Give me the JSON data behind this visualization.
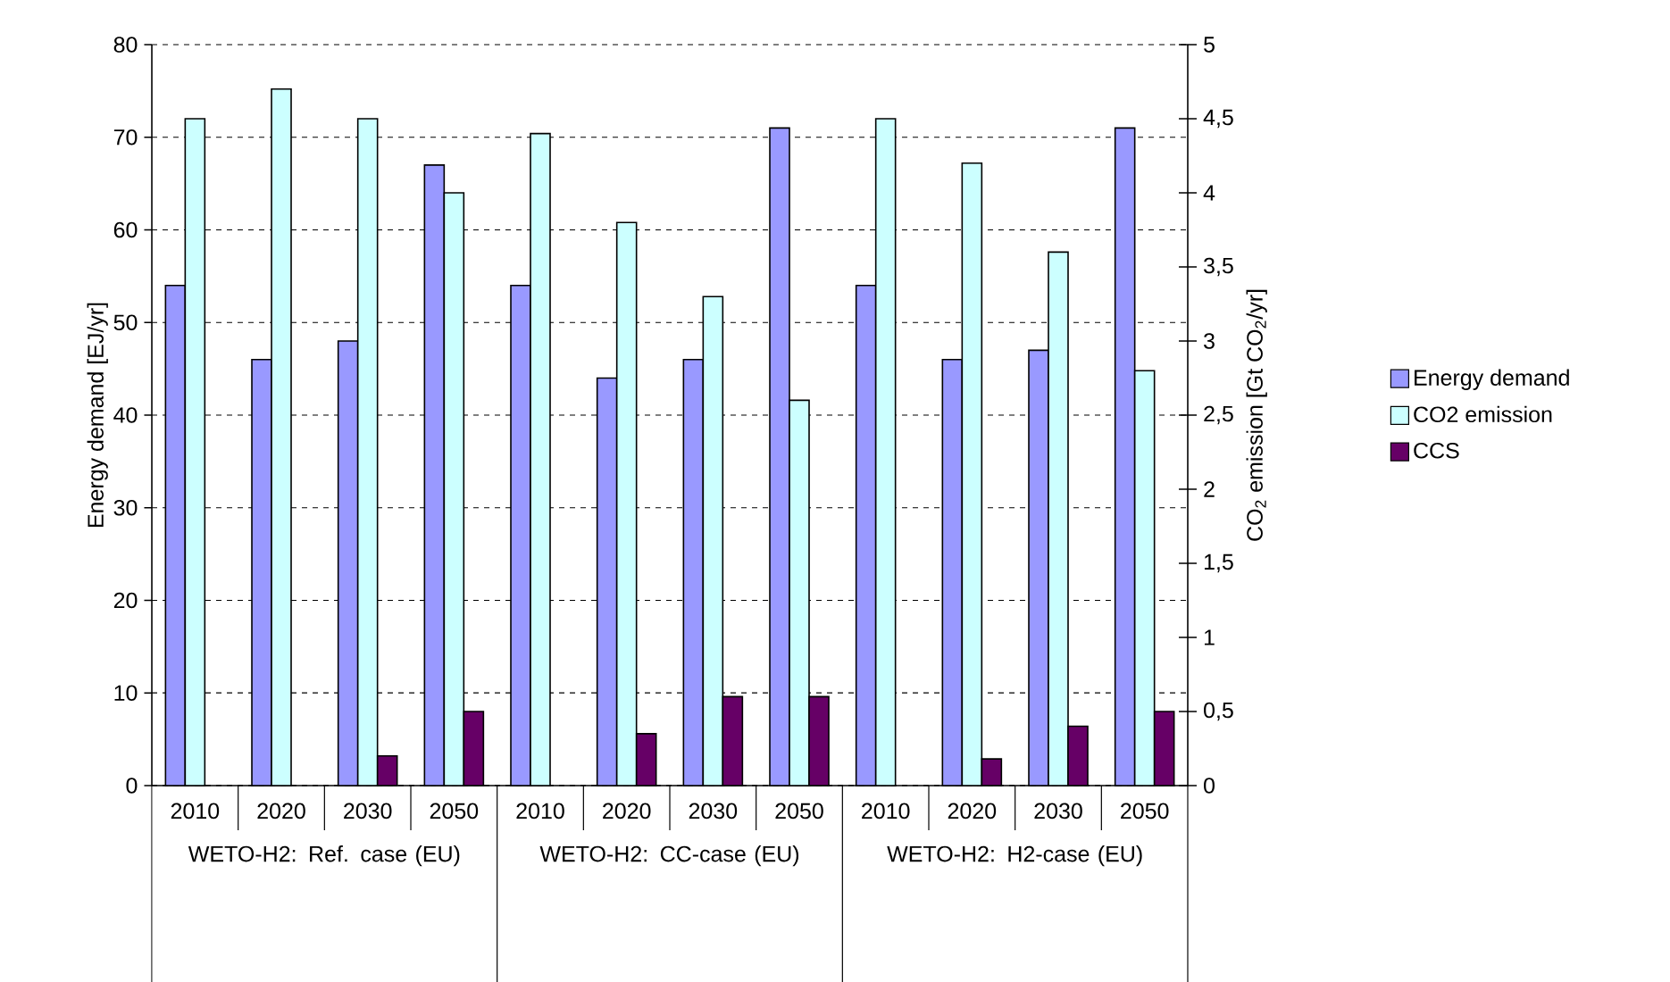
{
  "chart_data": {
    "type": "bar",
    "categories": [
      "2010",
      "2020",
      "2030",
      "2050",
      "2010",
      "2020",
      "2030",
      "2050",
      "2010",
      "2020",
      "2030",
      "2050"
    ],
    "series": [
      {
        "name": "Energy demand",
        "color": "#9999ff",
        "values": [
          54,
          46,
          48,
          67,
          54,
          44,
          46,
          71,
          54,
          46,
          47,
          71
        ]
      },
      {
        "name": "CO2 emission",
        "color": "#ccffff",
        "axis": "y2",
        "values": [
          4.5,
          4.7,
          4.5,
          4.0,
          4.4,
          3.8,
          3.3,
          2.6,
          4.5,
          4.2,
          3.6,
          2.8
        ]
      },
      {
        "name": "CCS",
        "color": "#660066",
        "axis": "y2",
        "values": [
          null,
          null,
          0.2,
          0.5,
          null,
          0.35,
          0.6,
          0.6,
          null,
          0.18,
          0.4,
          0.5
        ]
      }
    ],
    "ylabel": "Energy demand [EJ/yr]",
    "y2label": "CO$_{2}$ emission [Gt CO$_{2}$/yr]",
    "ylim": [
      0,
      80
    ],
    "yticks": [
      0,
      10,
      20,
      30,
      40,
      50,
      60,
      70,
      80
    ],
    "y2lim": [
      0,
      5
    ],
    "y2ticks": [
      0,
      {
        "value": 0.5,
        "label": "0,5"
      },
      1,
      {
        "value": 1.5,
        "label": "1,5"
      },
      2,
      {
        "value": 2.5,
        "label": "2,5"
      },
      3,
      {
        "value": 3.5,
        "label": "3,5"
      },
      4,
      {
        "value": 4.5,
        "label": "4,5"
      },
      5
    ],
    "annotations": [
      "WETO-H2: Ref. case (EU)",
      "WETO-H2: CC-case (EU)",
      "WETO-H2: H2-case (EU)"
    ],
    "grid": "y",
    "legend": "right"
  }
}
